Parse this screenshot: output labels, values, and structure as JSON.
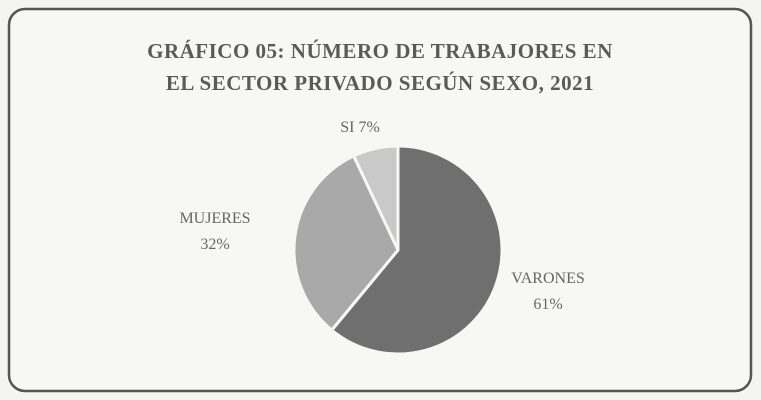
{
  "chart_data": {
    "type": "pie",
    "title": [
      "GRÁFICO 05: NÚMERO DE TRABAJORES EN",
      "EL SECTOR PRIVADO SEGÚN SEXO, 2021"
    ],
    "categories": [
      "VARONES",
      "MUJERES",
      "SI"
    ],
    "values": [
      61,
      32,
      7
    ],
    "value_labels": [
      "61%",
      "32%",
      "7%"
    ],
    "colors": [
      "#6f6f6f",
      "#a9a9a9",
      "#c9c9c9"
    ]
  }
}
